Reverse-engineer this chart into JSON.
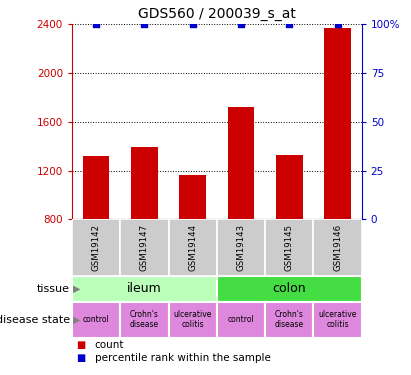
{
  "title": "GDS560 / 200039_s_at",
  "samples": [
    "GSM19142",
    "GSM19147",
    "GSM19144",
    "GSM19143",
    "GSM19145",
    "GSM19146"
  ],
  "counts": [
    1320,
    1390,
    1165,
    1720,
    1330,
    2370
  ],
  "percentile_ranks": [
    100,
    100,
    100,
    100,
    100,
    100
  ],
  "ylim_left": [
    800,
    2400
  ],
  "ylim_right": [
    0,
    100
  ],
  "yticks_left": [
    800,
    1200,
    1600,
    2000,
    2400
  ],
  "yticks_right": [
    0,
    25,
    50,
    75,
    100
  ],
  "bar_color": "#cc0000",
  "dot_color": "#0000cc",
  "tissue_colors": [
    "#bbffbb",
    "#44dd44"
  ],
  "disease_color": "#dd88dd",
  "sample_bg_color": "#cccccc",
  "left_axis_color": "#cc0000",
  "right_axis_color": "#0000cc",
  "legend_count_color": "#cc0000",
  "legend_pct_color": "#0000cc",
  "disease_labels": [
    "control",
    "Crohn's\ndisease",
    "ulcerative\ncolitis",
    "control",
    "Crohn's\ndisease",
    "ulcerative\ncolitis"
  ]
}
